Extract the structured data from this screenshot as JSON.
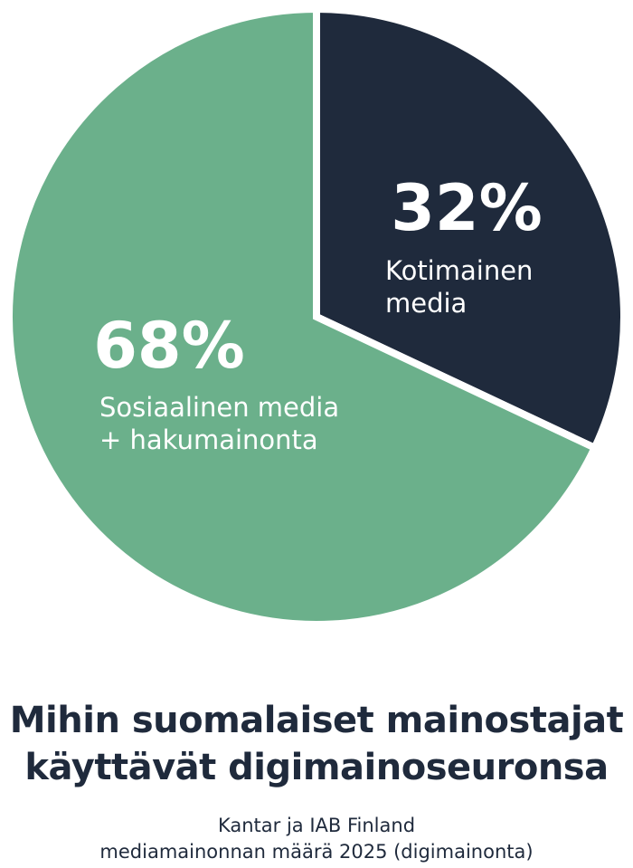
{
  "chart_data": {
    "type": "pie",
    "slices": [
      {
        "label_lines": [
          "Kotimainen",
          "media"
        ],
        "value": 32,
        "value_label": "32%",
        "color": "#1f2a3c"
      },
      {
        "label_lines": [
          "Sosiaalinen media",
          "+ hakumainonta"
        ],
        "value": 68,
        "value_label": "68%",
        "color": "#6bb08b"
      }
    ],
    "start": "12 o'clock",
    "direction": "clockwise",
    "title_lines": [
      "Mihin suomalaiset mainostajat",
      "käyttävät digimainoseuronsa"
    ],
    "source_lines": [
      "Kantar ja IAB Finland",
      "mediamainonnan määrä 2025 (digimainonta)"
    ]
  },
  "colors": {
    "dark": "#1f2a3c",
    "green": "#6bb08b",
    "text_on_slice": "#ffffff"
  }
}
